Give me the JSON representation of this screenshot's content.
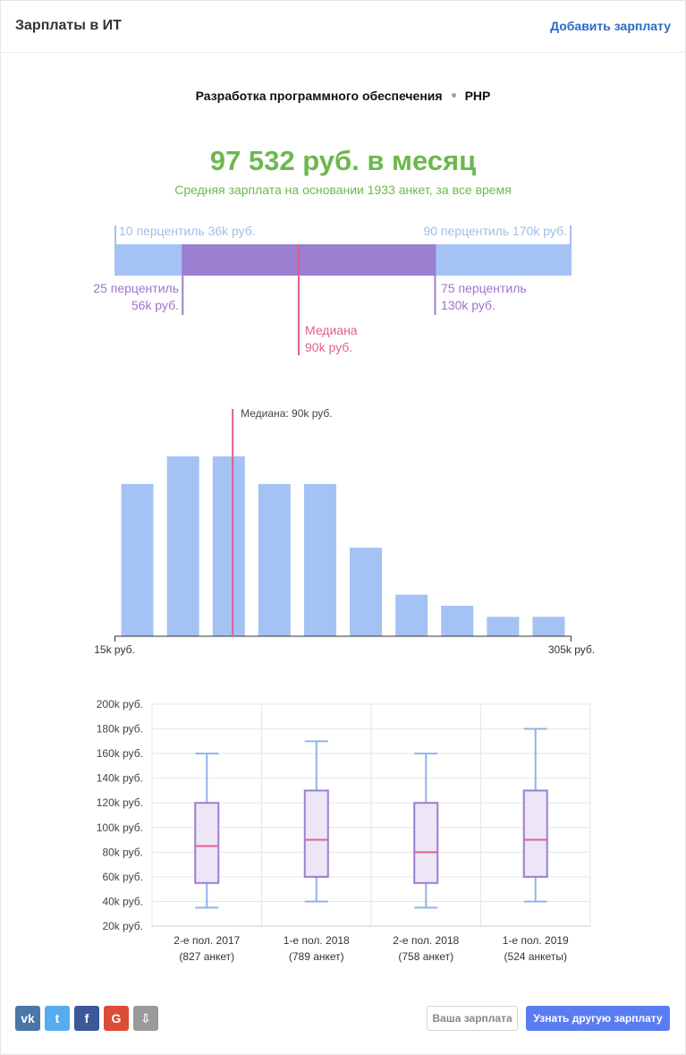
{
  "header": {
    "title": "Зарплаты в ИТ",
    "add_link": "Добавить зарплату"
  },
  "breadcrumb": {
    "category": "Разработка программного обеспечения",
    "language": "PHP"
  },
  "summary": {
    "average": "97 532 руб. в месяц",
    "subtitle": "Средняя зарплата на основании 1933 анкет, за все время"
  },
  "percentiles": {
    "p10": "10 перцентиль 36k руб.",
    "p90": "90 перцентиль 170k руб.",
    "p25_line1": "25 перцентиль",
    "p25_line2": "56k руб.",
    "p75_line1": "75 перцентиль",
    "p75_line2": "130k руб.",
    "median_line1": "Медиана",
    "median_line2": "90k руб.",
    "values": {
      "p10": 36,
      "p25": 56,
      "median": 90,
      "p75": 130,
      "p90": 170
    },
    "colors": {
      "outer": "#a4c2f4",
      "inner": "#9b7fd0",
      "median": "#e0608c"
    }
  },
  "chart_data": [
    {
      "type": "bar",
      "title": "",
      "xmin_label": "15k руб.",
      "xmax_label": "305k руб.",
      "xlim": [
        15,
        305
      ],
      "values": [
        55,
        65,
        65,
        55,
        55,
        32,
        15,
        11,
        7,
        7
      ],
      "median_label": "Медиана: 90k руб.",
      "median_value": 90,
      "bar_color": "#a4c2f4",
      "median_color": "#e0608c"
    },
    {
      "type": "box",
      "y_ticks": [
        "20k руб.",
        "40k руб.",
        "60k руб.",
        "80k руб.",
        "100k руб.",
        "120k руб.",
        "140k руб.",
        "160k руб.",
        "180k руб.",
        "200k руб."
      ],
      "ylim": [
        20,
        200
      ],
      "categories": [
        {
          "label": "2-е пол. 2017",
          "count": "(827 анкет)",
          "min": 35,
          "q1": 55,
          "median": 85,
          "q3": 120,
          "max": 160
        },
        {
          "label": "1-е пол. 2018",
          "count": "(789 анкет)",
          "min": 40,
          "q1": 60,
          "median": 90,
          "q3": 130,
          "max": 170
        },
        {
          "label": "2-е пол. 2018",
          "count": "(758 анкет)",
          "min": 35,
          "q1": 55,
          "median": 80,
          "q3": 120,
          "max": 160
        },
        {
          "label": "1-е пол. 2019",
          "count": "(524 анкеты)",
          "min": 40,
          "q1": 60,
          "median": 90,
          "q3": 130,
          "max": 180
        }
      ],
      "colors": {
        "whisker": "#8fb4ea",
        "box_stroke": "#9b7fd0",
        "box_fill": "#ece6f6",
        "median": "#e0608c",
        "grid": "#e6e6e6"
      }
    }
  ],
  "footer": {
    "social": [
      {
        "name": "vk-icon",
        "glyph": "vk",
        "color": "#4a76a8"
      },
      {
        "name": "twitter-icon",
        "glyph": "t",
        "color": "#55acee"
      },
      {
        "name": "facebook-icon",
        "glyph": "f",
        "color": "#3b5998"
      },
      {
        "name": "google-icon",
        "glyph": "G",
        "color": "#dd4b39"
      },
      {
        "name": "download-icon",
        "glyph": "⇩",
        "color": "#9a9a9a"
      }
    ],
    "your_salary": "Ваша зарплата",
    "other_salary": "Узнать другую зарплату"
  }
}
